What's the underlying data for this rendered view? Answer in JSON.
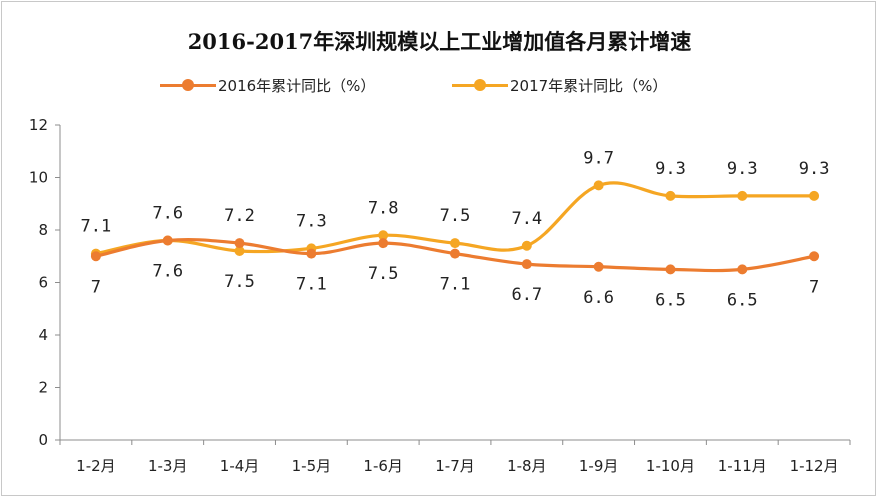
{
  "chart_data": {
    "type": "line",
    "title": "2016-2017年深圳规模以上工业增加值各月累计增速",
    "categories": [
      "1-2月",
      "1-3月",
      "1-4月",
      "1-5月",
      "1-6月",
      "1-7月",
      "1-8月",
      "1-9月",
      "1-10月",
      "1-11月",
      "1-12月"
    ],
    "series": [
      {
        "name": "2016年累计同比（%）",
        "color": "#ec7c30",
        "values": [
          7,
          7.6,
          7.5,
          7.1,
          7.5,
          7.1,
          6.7,
          6.6,
          6.5,
          6.5,
          7
        ]
      },
      {
        "name": "2017年累计同比（%）",
        "color": "#f5a623",
        "values": [
          7.1,
          7.6,
          7.2,
          7.3,
          7.8,
          7.5,
          7.4,
          9.7,
          9.3,
          9.3,
          9.3
        ]
      }
    ],
    "yticks": [
      0,
      2,
      4,
      6,
      8,
      10,
      12
    ],
    "ylim": [
      0,
      12
    ],
    "grid": false,
    "legend": "top-center"
  }
}
